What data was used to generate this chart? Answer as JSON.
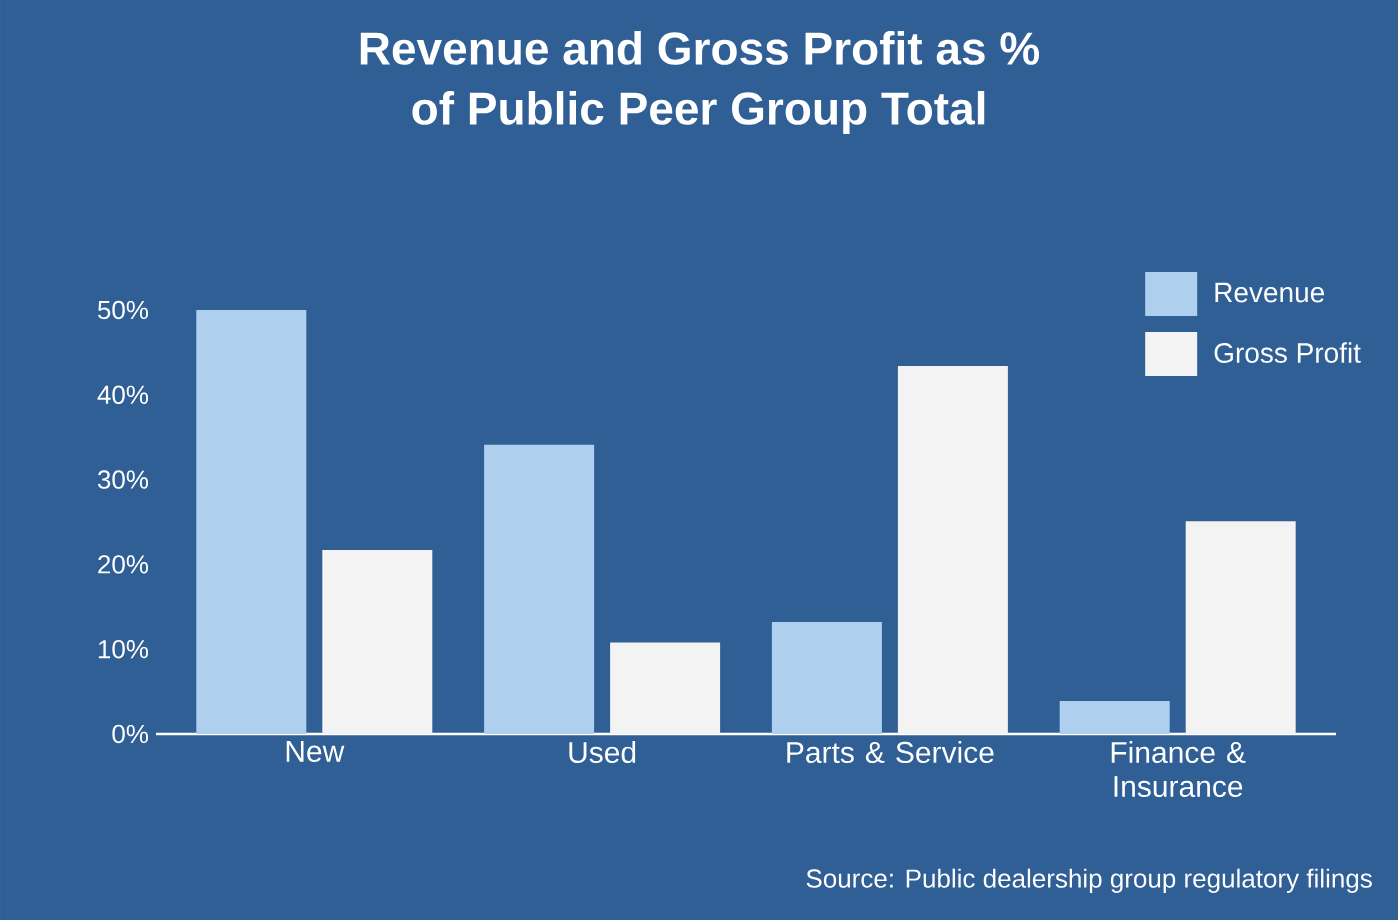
{
  "chart_data": {
    "type": "bar",
    "title": "Revenue and Gross Profit as %\nof Public Peer Group Total",
    "categories": [
      "New",
      "Used",
      "Parts & Service",
      "Finance & Insurance"
    ],
    "series": [
      {
        "name": "Revenue",
        "color": "#aed0ee",
        "values": [
          50,
          34.1,
          13.2,
          3.9
        ]
      },
      {
        "name": "Gross Profit",
        "color": "#f3f3f3",
        "values": [
          21.7,
          10.8,
          43.4,
          25.1
        ]
      }
    ],
    "ylim": [
      0,
      50
    ],
    "yticks": [
      {
        "value": 0,
        "label": "0%"
      },
      {
        "value": 10,
        "label": "10%"
      },
      {
        "value": 20,
        "label": "20%"
      },
      {
        "value": 30,
        "label": "30%"
      },
      {
        "value": 40,
        "label": "40%"
      },
      {
        "value": 50,
        "label": "50%"
      }
    ],
    "legend": "top right",
    "annotations": [
      "Source: Public dealership group regulatory filings"
    ]
  }
}
